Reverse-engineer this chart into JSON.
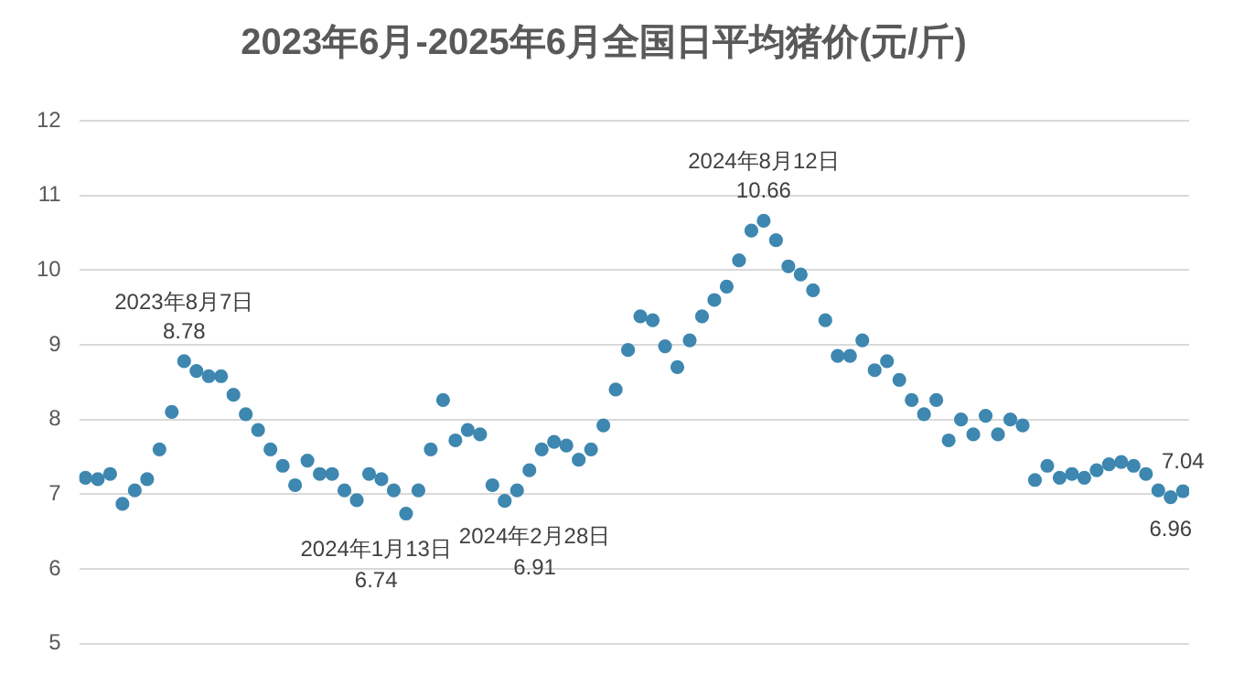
{
  "chart_data": {
    "type": "scatter",
    "title": "2023年6月-2025年6月全国日平均猪价(元/斤)",
    "color": "#3e87b0",
    "marker": "circle",
    "grid": "y",
    "tick_labels": "y",
    "legend": false,
    "ylim": [
      5,
      12
    ],
    "yticks": [
      5,
      6,
      7,
      8,
      9,
      10,
      11,
      12
    ],
    "categories": [
      null,
      null,
      null,
      null,
      null,
      null,
      null,
      null,
      null,
      null,
      null,
      null,
      null,
      null,
      null,
      null,
      null,
      null,
      null,
      null,
      null,
      null,
      null,
      null,
      null,
      null,
      null,
      null,
      null,
      null,
      null,
      null,
      null,
      null,
      null,
      null,
      null,
      null,
      null,
      null,
      null,
      null,
      null,
      null,
      null,
      null,
      null,
      null,
      null,
      null,
      null,
      null,
      null,
      null,
      null,
      null,
      null,
      null,
      null,
      null,
      null,
      null,
      null,
      null,
      null,
      null,
      null,
      null,
      null,
      null,
      null,
      null,
      null,
      null,
      null,
      null,
      null,
      null,
      null,
      null,
      null,
      null,
      null,
      null,
      null,
      null,
      null,
      null,
      null,
      null
    ],
    "values": [
      7.22,
      7.2,
      7.27,
      6.87,
      7.05,
      7.2,
      7.6,
      8.1,
      8.78,
      8.65,
      8.58,
      8.58,
      8.33,
      8.07,
      7.86,
      7.6,
      7.38,
      7.12,
      7.45,
      7.27,
      7.27,
      7.05,
      6.92,
      7.27,
      7.2,
      7.05,
      6.74,
      7.05,
      7.6,
      8.26,
      7.72,
      7.86,
      7.8,
      7.12,
      6.91,
      7.05,
      7.32,
      7.6,
      7.7,
      7.65,
      7.46,
      7.6,
      7.92,
      8.4,
      8.93,
      9.38,
      9.33,
      8.98,
      8.7,
      9.06,
      9.38,
      9.6,
      9.78,
      10.13,
      10.53,
      10.66,
      10.4,
      10.05,
      9.94,
      9.73,
      9.33,
      8.85,
      8.85,
      9.06,
      8.66,
      8.78,
      8.53,
      8.26,
      8.07,
      8.26,
      7.72,
      8.0,
      7.8,
      8.05,
      7.8,
      8.0,
      7.92,
      7.19,
      7.38,
      7.22,
      7.27,
      7.22,
      7.32,
      7.4,
      7.43,
      7.38,
      7.27,
      7.05,
      6.96,
      7.04
    ],
    "value_labels": [
      null,
      null,
      null,
      null,
      null,
      null,
      null,
      null,
      "8.78",
      null,
      null,
      null,
      null,
      null,
      null,
      null,
      null,
      null,
      null,
      null,
      null,
      null,
      null,
      null,
      null,
      null,
      "6.74",
      null,
      null,
      null,
      null,
      null,
      null,
      null,
      "6.91",
      null,
      null,
      null,
      null,
      null,
      null,
      null,
      null,
      null,
      null,
      null,
      null,
      null,
      null,
      null,
      null,
      null,
      null,
      null,
      null,
      "10.66",
      null,
      null,
      null,
      null,
      null,
      null,
      null,
      null,
      null,
      null,
      null,
      null,
      null,
      null,
      null,
      null,
      null,
      null,
      null,
      null,
      null,
      null,
      null,
      null,
      null,
      null,
      null,
      null,
      null,
      null,
      null,
      null,
      "6.96",
      "7.04"
    ],
    "annotations": [
      "2023年8月7日",
      "2024年1月13日",
      "2024年2月28日",
      "2024年8月12日"
    ]
  }
}
